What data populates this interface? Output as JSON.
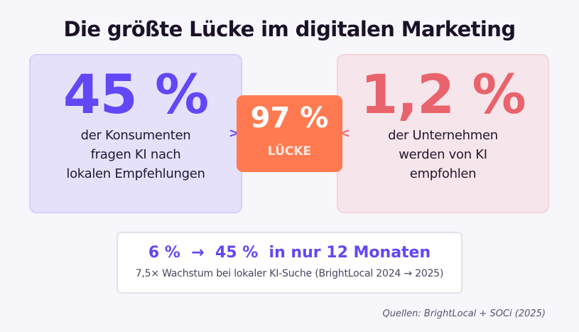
{
  "title": "Die größte Lücke im digitalen Marketing",
  "left_card": {
    "value": "45 %",
    "description": [
      "der Konsumenten",
      "fragen KI nach",
      "lokalen Empfehlungen"
    ]
  },
  "gap_card": {
    "value": "97 %",
    "label": "LÜCKE",
    "arrow_left": ">",
    "arrow_right": "<"
  },
  "right_card": {
    "value": "1,2 %",
    "description": [
      "der Unternehmen",
      "werden von KI",
      "empfohlen"
    ]
  },
  "growth": {
    "headline": "6 %  →  45 %  in nur 12 Monaten",
    "subtitle": "7,5× Wachstum bei lokaler KI-Suche (BrightLocal 2024 → 2025)"
  },
  "source": "Quellen: BrightLocal + SOCi (2025)",
  "colors": {
    "consumer_purple": "#6247f5",
    "business_red": "#e8636b",
    "gap_orange": "#ff7a50",
    "background": "#f7f6fb"
  }
}
